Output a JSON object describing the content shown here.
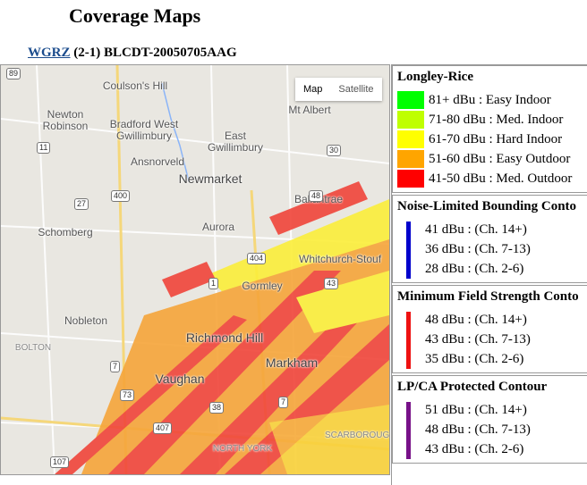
{
  "header": {
    "title": "Coverage Maps",
    "station_link": "WGRZ",
    "station_info": "(2-1) BLCDT-20050705AAG"
  },
  "map": {
    "buttons": [
      "Map",
      "Satellite"
    ],
    "places": [
      "Coulson's Hill",
      "Newton Robinson",
      "Bradford West Gwillimbury",
      "East Gwillimbury",
      "Mt Albert",
      "Ansnorveld",
      "Newmarket",
      "Ballantrae",
      "Schomberg",
      "Aurora",
      "Whitchurch-Stouf",
      "Gormley",
      "Nobleton",
      "Richmond Hill",
      "Markham",
      "Vaughan",
      "BOLTON",
      "NORTH YORK",
      "SCARBOROUGH"
    ],
    "routes": [
      "89",
      "11",
      "400",
      "27",
      "30",
      "48",
      "404",
      "1",
      "43",
      "7",
      "73",
      "38",
      "7",
      "407",
      "107"
    ]
  },
  "legend": {
    "longley_rice": {
      "title": "Longley-Rice",
      "items": [
        {
          "label": "81+ dBu : Easy Indoor",
          "color": "#00ff00"
        },
        {
          "label": "71-80 dBu : Med. Indoor",
          "color": "#bfff00"
        },
        {
          "label": "61-70 dBu : Hard Indoor",
          "color": "#ffff00"
        },
        {
          "label": "51-60 dBu : Easy Outdoor",
          "color": "#ffa500"
        },
        {
          "label": "41-50 dBu : Med. Outdoor",
          "color": "#ff0000"
        }
      ]
    },
    "contours": [
      {
        "title": "Noise-Limited Bounding Conto",
        "color": "#0000cc",
        "items": [
          "41 dBu : (Ch. 14+)",
          "36 dBu : (Ch. 7-13)",
          "28 dBu : (Ch. 2-6)"
        ]
      },
      {
        "title": "Minimum Field Strength Conto",
        "color": "#ee1111",
        "items": [
          "48 dBu : (Ch. 14+)",
          "43 dBu : (Ch. 7-13)",
          "35 dBu : (Ch. 2-6)"
        ]
      },
      {
        "title": "LP/CA Protected Contour",
        "color": "#771188",
        "items": [
          "51 dBu : (Ch. 14+)",
          "48 dBu : (Ch. 7-13)",
          "43 dBu : (Ch. 2-6)"
        ]
      }
    ]
  }
}
